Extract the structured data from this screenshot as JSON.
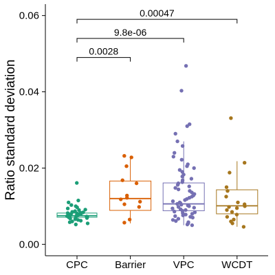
{
  "chart_data": {
    "type": "box",
    "ylabel": "Ratio standard deviation",
    "xlabel": "",
    "ylim": [
      -0.003,
      0.063
    ],
    "yticks": [
      0.0,
      0.02,
      0.04,
      0.06
    ],
    "ytick_labels": [
      "0.00",
      "0.02",
      "0.04",
      "0.06"
    ],
    "categories": [
      "CPC",
      "Barrier",
      "VPC",
      "WCDT"
    ],
    "colors": {
      "CPC": "#1b9e77",
      "Barrier": "#d95f02",
      "VPC": "#7570b3",
      "WCDT": "#a6761d"
    },
    "boxes": [
      {
        "name": "CPC",
        "q1": 0.0071,
        "median": 0.0075,
        "q3": 0.0082,
        "whisker_low": 0.0068,
        "whisker_high": 0.0084
      },
      {
        "name": "Barrier",
        "q1": 0.0089,
        "median": 0.012,
        "q3": 0.0166,
        "whisker_low": 0.0055,
        "whisker_high": 0.0232
      },
      {
        "name": "VPC",
        "q1": 0.0088,
        "median": 0.0106,
        "q3": 0.0161,
        "whisker_low": 0.005,
        "whisker_high": 0.027
      },
      {
        "name": "WCDT",
        "q1": 0.008,
        "median": 0.0101,
        "q3": 0.0143,
        "whisker_low": 0.0046,
        "whisker_high": 0.0218
      }
    ],
    "points": {
      "CPC": [
        0.0161,
        0.0115,
        0.011,
        0.0103,
        0.01,
        0.0097,
        0.0094,
        0.0091,
        0.009,
        0.0087,
        0.0085,
        0.0084,
        0.0083,
        0.0082,
        0.0081,
        0.008,
        0.0079,
        0.0078,
        0.0077,
        0.0076,
        0.0075,
        0.0074,
        0.0073,
        0.0072,
        0.0071,
        0.007,
        0.0069,
        0.0068,
        0.0066,
        0.0064,
        0.0062,
        0.006,
        0.0058,
        0.0055,
        0.0052
      ],
      "Barrier": [
        0.0232,
        0.0228,
        0.0205,
        0.0168,
        0.016,
        0.0128,
        0.0122,
        0.0118,
        0.0112,
        0.0105,
        0.0098,
        0.0065,
        0.0057
      ],
      "VPC": [
        0.0468,
        0.0403,
        0.0315,
        0.031,
        0.029,
        0.027,
        0.0258,
        0.024,
        0.023,
        0.0222,
        0.021,
        0.0205,
        0.02,
        0.0195,
        0.019,
        0.0183,
        0.0178,
        0.0172,
        0.0168,
        0.0163,
        0.016,
        0.0156,
        0.0152,
        0.0148,
        0.0144,
        0.014,
        0.0136,
        0.0132,
        0.0128,
        0.0125,
        0.0122,
        0.0119,
        0.0116,
        0.0113,
        0.011,
        0.0108,
        0.0106,
        0.0104,
        0.0102,
        0.01,
        0.0098,
        0.0096,
        0.0094,
        0.0092,
        0.009,
        0.0088,
        0.0086,
        0.0084,
        0.0082,
        0.008,
        0.0078,
        0.0076,
        0.0074,
        0.0072,
        0.007,
        0.0067,
        0.0064,
        0.0061,
        0.0058,
        0.0055,
        0.0052,
        0.005
      ],
      "WCDT": [
        0.0331,
        0.0214,
        0.0188,
        0.015,
        0.014,
        0.0125,
        0.011,
        0.0105,
        0.01,
        0.0098,
        0.0095,
        0.009,
        0.0085,
        0.0078,
        0.0072,
        0.0065,
        0.006,
        0.0055,
        0.0046
      ]
    },
    "significance": [
      {
        "from": "CPC",
        "to": "Barrier",
        "y": 0.049,
        "label": "0.0028"
      },
      {
        "from": "CPC",
        "to": "VPC",
        "y": 0.054,
        "label": "9.8e-06"
      },
      {
        "from": "CPC",
        "to": "WCDT",
        "y": 0.059,
        "label": "0.00047"
      }
    ],
    "grid": false,
    "legend": "none"
  }
}
